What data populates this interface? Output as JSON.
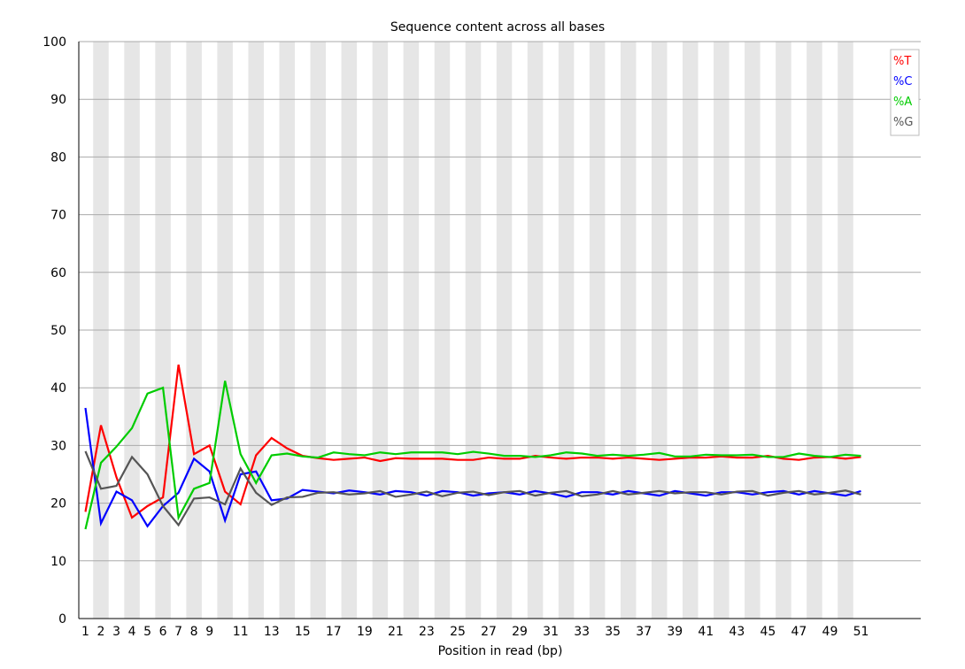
{
  "chart_data": {
    "type": "line",
    "title": "Sequence content across all bases",
    "xlabel": "Position in read (bp)",
    "ylabel": "",
    "ylim": [
      0,
      100
    ],
    "yticks": [
      "0",
      "10",
      "20",
      "30",
      "40",
      "50",
      "60",
      "70",
      "80",
      "90",
      "100"
    ],
    "x": [
      1,
      2,
      3,
      4,
      5,
      6,
      7,
      8,
      9,
      10,
      11,
      12,
      13,
      14,
      15,
      16,
      17,
      18,
      19,
      20,
      21,
      22,
      23,
      24,
      25,
      26,
      27,
      28,
      29,
      30,
      31,
      32,
      33,
      34,
      35,
      36,
      37,
      38,
      39,
      40,
      41,
      42,
      43,
      44,
      45,
      46,
      47,
      48,
      49,
      50,
      51
    ],
    "xtick_labels": [
      "1",
      "2",
      "3",
      "4",
      "5",
      "6",
      "7",
      "8",
      "9",
      "",
      "11",
      "",
      "13",
      "",
      "15",
      "",
      "17",
      "",
      "19",
      "",
      "21",
      "",
      "23",
      "",
      "25",
      "",
      "27",
      "",
      "29",
      "",
      "31",
      "",
      "33",
      "",
      "35",
      "",
      "37",
      "",
      "39",
      "",
      "41",
      "",
      "43",
      "",
      "45",
      "",
      "47",
      "",
      "49",
      "",
      "51"
    ],
    "grid": true,
    "legend_position": "top-right",
    "series": [
      {
        "name": "%T",
        "color": "#ff0000",
        "values": [
          18.5,
          33.5,
          24.5,
          17.5,
          19.5,
          21,
          44,
          28.5,
          30,
          22,
          19.8,
          28.3,
          31.3,
          29.5,
          28.2,
          27.8,
          27.5,
          27.7,
          27.9,
          27.3,
          27.8,
          27.7,
          27.7,
          27.7,
          27.5,
          27.5,
          27.9,
          27.7,
          27.7,
          28.2,
          27.9,
          27.7,
          27.9,
          27.9,
          27.7,
          27.9,
          27.7,
          27.5,
          27.7,
          27.9,
          27.9,
          28.1,
          27.9,
          27.9,
          28.2,
          27.7,
          27.5,
          27.9,
          28.0,
          27.7,
          28.0
        ]
      },
      {
        "name": "%C",
        "color": "#0000ff",
        "values": [
          36.5,
          16.5,
          22,
          20.5,
          16,
          19.5,
          21.8,
          27.7,
          25.5,
          17,
          25,
          25.5,
          20.5,
          20.8,
          22.3,
          22.0,
          21.7,
          22.2,
          21.9,
          21.5,
          22.1,
          21.9,
          21.3,
          22.1,
          21.9,
          21.3,
          21.7,
          21.9,
          21.5,
          22.1,
          21.7,
          21.1,
          21.9,
          21.9,
          21.5,
          22.1,
          21.7,
          21.3,
          22.1,
          21.7,
          21.3,
          21.9,
          21.9,
          21.5,
          21.9,
          22.1,
          21.5,
          22.1,
          21.7,
          21.3,
          22.1
        ]
      },
      {
        "name": "%A",
        "color": "#00cc00",
        "values": [
          15.5,
          27,
          29.8,
          33,
          39,
          40,
          17.5,
          22.5,
          23.5,
          41.2,
          28.5,
          23.5,
          28.3,
          28.6,
          28.1,
          27.9,
          28.8,
          28.5,
          28.3,
          28.8,
          28.5,
          28.8,
          28.8,
          28.8,
          28.5,
          28.9,
          28.6,
          28.2,
          28.2,
          28.0,
          28.3,
          28.8,
          28.6,
          28.2,
          28.4,
          28.2,
          28.4,
          28.7,
          28.1,
          28.1,
          28.4,
          28.3,
          28.3,
          28.4,
          28.0,
          28.0,
          28.6,
          28.2,
          28.0,
          28.4,
          28.2
        ]
      },
      {
        "name": "%G",
        "color": "#555555",
        "values": [
          29,
          22.5,
          23,
          28,
          25,
          19.5,
          16.2,
          20.8,
          21,
          19.8,
          26,
          21.8,
          19.7,
          21,
          21.1,
          21.8,
          21.9,
          21.5,
          21.7,
          22.1,
          21.1,
          21.5,
          22.0,
          21.2,
          21.8,
          22.0,
          21.4,
          21.9,
          22.1,
          21.3,
          21.8,
          22.1,
          21.2,
          21.5,
          22.1,
          21.5,
          21.8,
          22.1,
          21.7,
          21.9,
          21.9,
          21.5,
          22.0,
          22.1,
          21.3,
          21.8,
          22.1,
          21.5,
          21.8,
          22.2,
          21.5
        ]
      }
    ]
  }
}
